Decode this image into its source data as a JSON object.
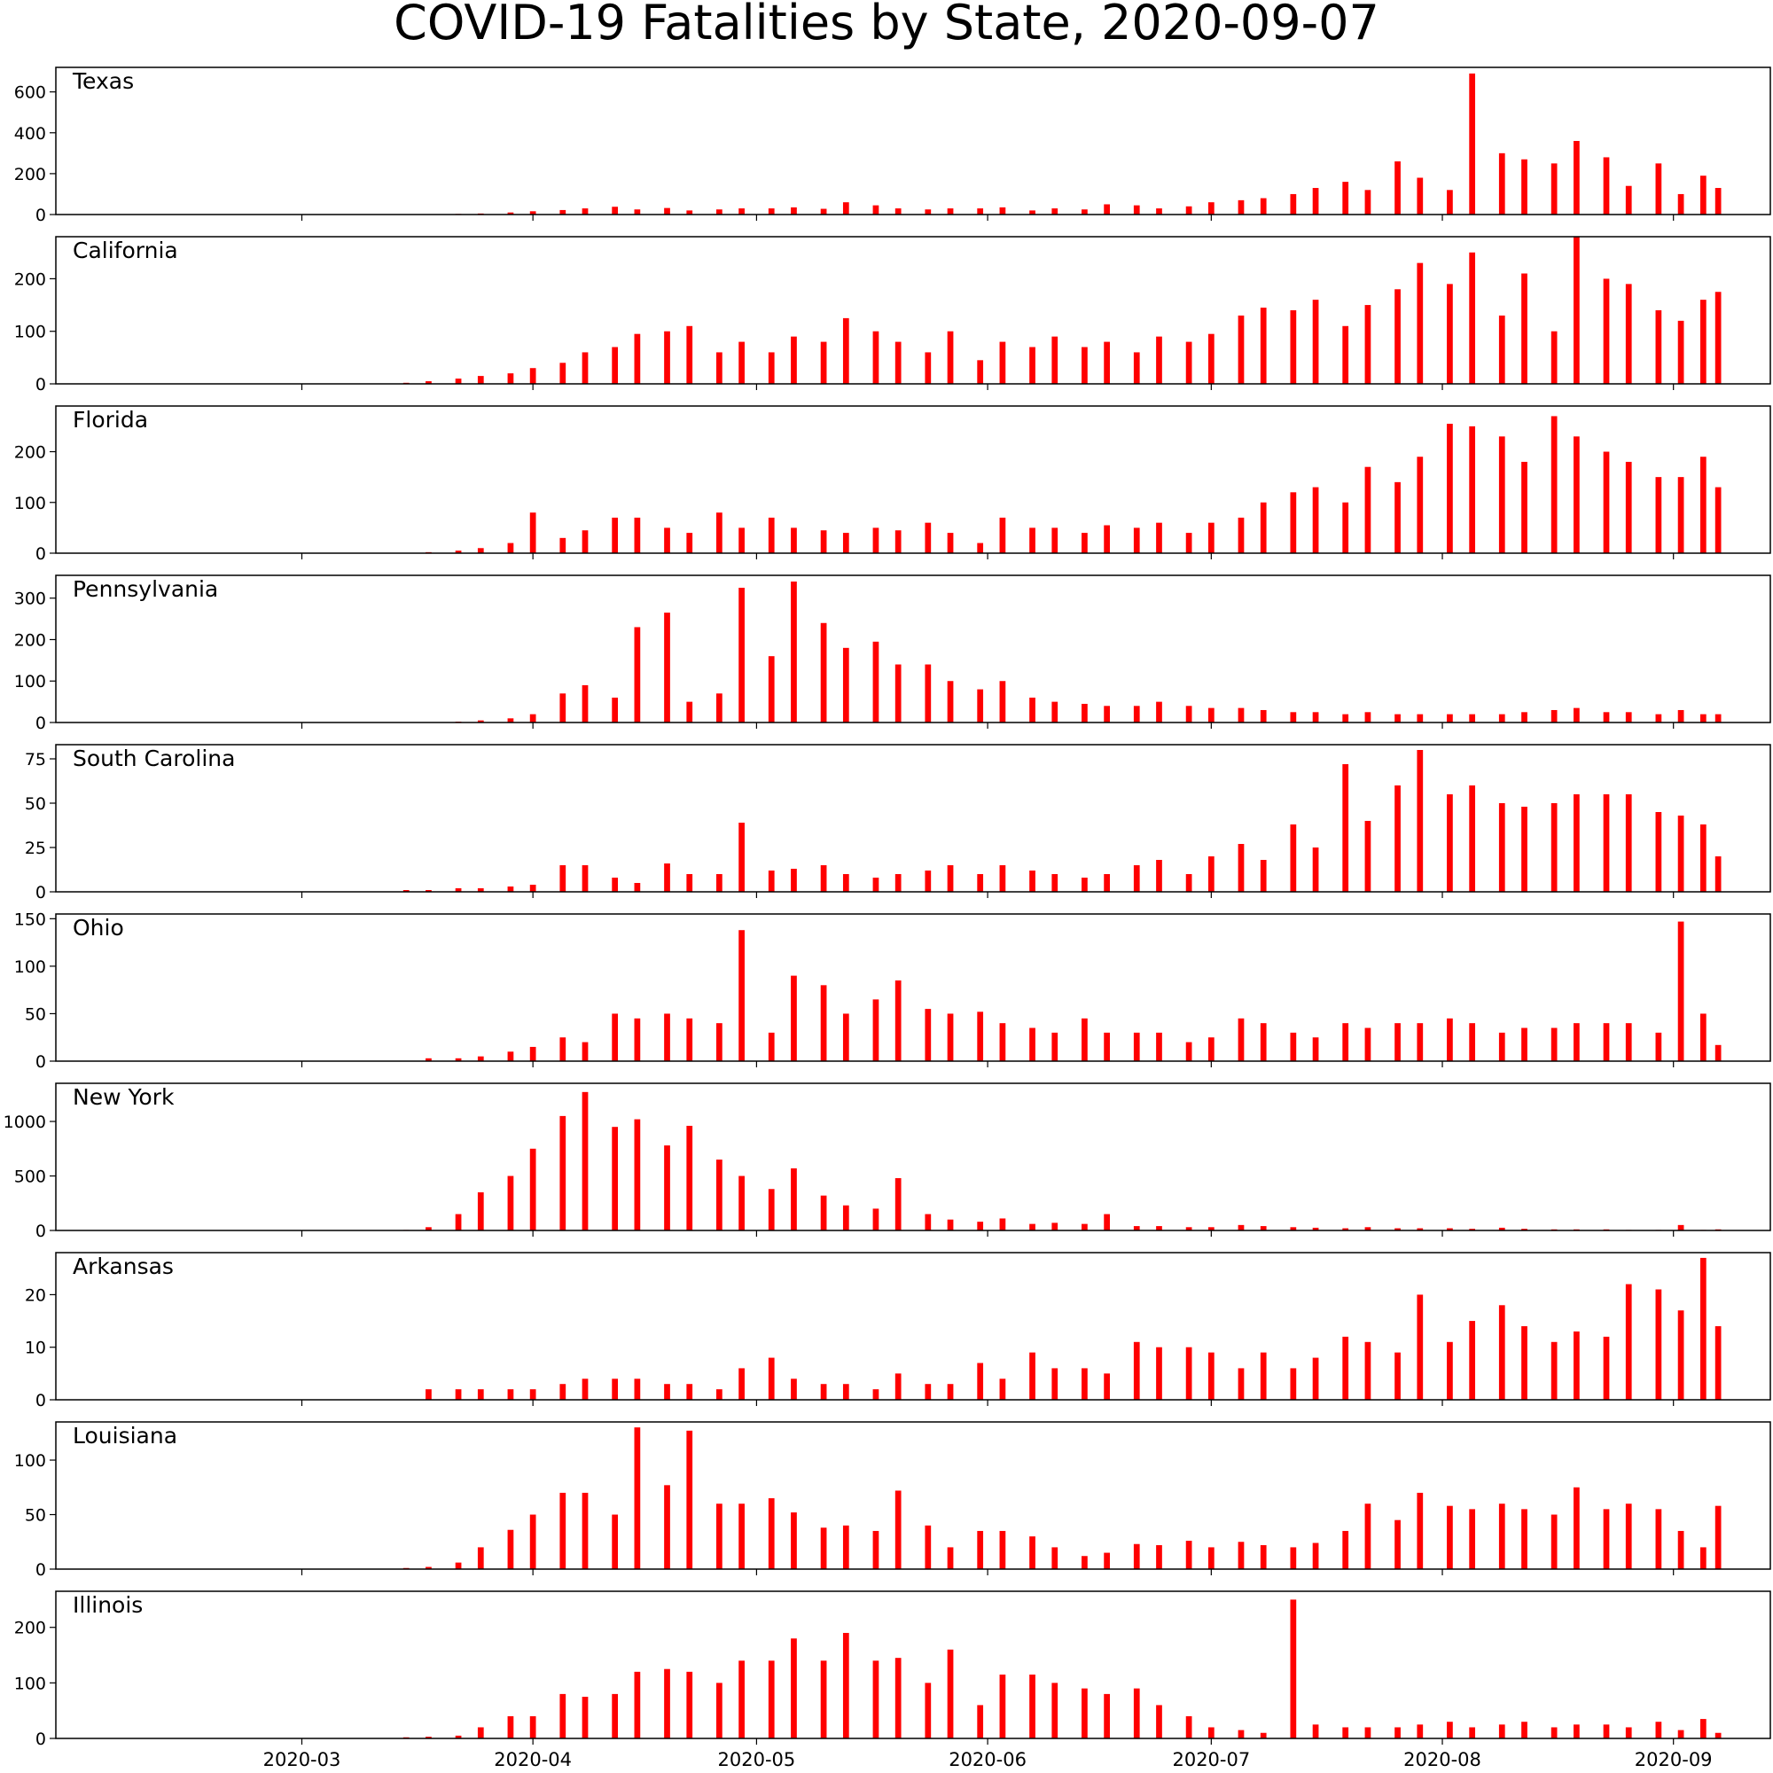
{
  "chart_data": {
    "type": "bar",
    "title": "COVID-19 Fatalities by State, 2020-09-07",
    "bar_color": "#ff0000",
    "x_ticks": [
      "2020-03",
      "2020-04",
      "2020-05",
      "2020-06",
      "2020-07",
      "2020-08",
      "2020-09"
    ],
    "tick_dates": [
      "2020-03-01",
      "2020-04-01",
      "2020-05-01",
      "2020-06-01",
      "2020-07-01",
      "2020-08-01",
      "2020-09-01"
    ],
    "x_range": [
      "2020-01-28",
      "2020-09-14"
    ],
    "grid": false,
    "legend": false,
    "dates": [
      "2020-03-01",
      "2020-03-08",
      "2020-03-15",
      "2020-03-18",
      "2020-03-22",
      "2020-03-25",
      "2020-03-29",
      "2020-04-01",
      "2020-04-05",
      "2020-04-08",
      "2020-04-12",
      "2020-04-15",
      "2020-04-19",
      "2020-04-22",
      "2020-04-26",
      "2020-04-29",
      "2020-05-03",
      "2020-05-06",
      "2020-05-10",
      "2020-05-13",
      "2020-05-17",
      "2020-05-20",
      "2020-05-24",
      "2020-05-27",
      "2020-05-31",
      "2020-06-03",
      "2020-06-07",
      "2020-06-10",
      "2020-06-14",
      "2020-06-17",
      "2020-06-21",
      "2020-06-24",
      "2020-06-28",
      "2020-07-01",
      "2020-07-05",
      "2020-07-08",
      "2020-07-12",
      "2020-07-15",
      "2020-07-19",
      "2020-07-22",
      "2020-07-26",
      "2020-07-29",
      "2020-08-02",
      "2020-08-05",
      "2020-08-09",
      "2020-08-12",
      "2020-08-16",
      "2020-08-19",
      "2020-08-23",
      "2020-08-26",
      "2020-08-30",
      "2020-09-02",
      "2020-09-05",
      "2020-09-07"
    ],
    "states": [
      {
        "name": "Texas",
        "yticks": [
          0,
          200,
          400,
          600
        ],
        "ylim": [
          0,
          720
        ],
        "values": [
          0,
          0,
          0,
          2,
          3,
          5,
          10,
          16,
          22,
          30,
          38,
          25,
          32,
          20,
          25,
          30,
          30,
          35,
          28,
          60,
          45,
          30,
          25,
          30,
          30,
          35,
          20,
          30,
          25,
          50,
          45,
          30,
          40,
          60,
          70,
          80,
          100,
          130,
          160,
          120,
          260,
          180,
          120,
          690,
          300,
          270,
          250,
          360,
          280,
          140,
          250,
          100,
          190,
          130
        ]
      },
      {
        "name": "California",
        "yticks": [
          0,
          100,
          200
        ],
        "ylim": [
          0,
          280
        ],
        "values": [
          0,
          0,
          2,
          5,
          10,
          15,
          20,
          30,
          40,
          60,
          70,
          95,
          100,
          110,
          60,
          80,
          60,
          90,
          80,
          125,
          100,
          80,
          60,
          100,
          45,
          80,
          70,
          90,
          70,
          80,
          60,
          90,
          80,
          95,
          130,
          145,
          140,
          160,
          110,
          150,
          180,
          230,
          190,
          250,
          130,
          210,
          100,
          280,
          200,
          190,
          140,
          120,
          160,
          175
        ]
      },
      {
        "name": "Florida",
        "yticks": [
          0,
          100,
          200
        ],
        "ylim": [
          0,
          290
        ],
        "values": [
          0,
          0,
          0,
          2,
          5,
          10,
          20,
          80,
          30,
          45,
          70,
          70,
          50,
          40,
          80,
          50,
          70,
          50,
          45,
          40,
          50,
          45,
          60,
          40,
          20,
          70,
          50,
          50,
          40,
          55,
          50,
          60,
          40,
          60,
          70,
          100,
          120,
          130,
          100,
          170,
          140,
          190,
          255,
          250,
          230,
          180,
          270,
          230,
          200,
          180,
          150,
          150,
          190,
          130
        ]
      },
      {
        "name": "Pennsylvania",
        "yticks": [
          0,
          100,
          200,
          300
        ],
        "ylim": [
          0,
          355
        ],
        "values": [
          0,
          0,
          0,
          0,
          2,
          5,
          10,
          20,
          70,
          90,
          60,
          230,
          265,
          50,
          70,
          325,
          160,
          340,
          240,
          180,
          195,
          140,
          140,
          100,
          80,
          100,
          60,
          50,
          45,
          40,
          40,
          50,
          40,
          35,
          35,
          30,
          25,
          25,
          20,
          25,
          20,
          20,
          20,
          20,
          20,
          25,
          30,
          35,
          25,
          25,
          20,
          30,
          20,
          20
        ]
      },
      {
        "name": "South Carolina",
        "yticks": [
          0,
          25,
          50,
          75
        ],
        "ylim": [
          0,
          83
        ],
        "values": [
          0,
          0,
          1,
          1,
          2,
          2,
          3,
          4,
          15,
          15,
          8,
          5,
          16,
          10,
          10,
          39,
          12,
          13,
          15,
          10,
          8,
          10,
          12,
          15,
          10,
          15,
          12,
          10,
          8,
          10,
          15,
          18,
          10,
          20,
          27,
          18,
          38,
          25,
          72,
          40,
          60,
          80,
          55,
          60,
          50,
          48,
          50,
          55,
          55,
          55,
          45,
          43,
          38,
          20
        ]
      },
      {
        "name": "Ohio",
        "yticks": [
          0,
          50,
          100,
          150
        ],
        "ylim": [
          0,
          155
        ],
        "values": [
          0,
          0,
          0,
          3,
          3,
          5,
          10,
          15,
          25,
          20,
          50,
          45,
          50,
          45,
          40,
          138,
          30,
          90,
          80,
          50,
          65,
          85,
          55,
          50,
          52,
          40,
          35,
          30,
          45,
          30,
          30,
          30,
          20,
          25,
          45,
          40,
          30,
          25,
          40,
          35,
          40,
          40,
          45,
          40,
          30,
          35,
          35,
          40,
          40,
          40,
          30,
          147,
          50,
          17
        ]
      },
      {
        "name": "New York",
        "yticks": [
          0,
          500,
          1000
        ],
        "ylim": [
          0,
          1350
        ],
        "values": [
          0,
          0,
          5,
          30,
          150,
          350,
          500,
          750,
          1050,
          1270,
          950,
          1020,
          780,
          960,
          650,
          500,
          380,
          570,
          320,
          230,
          200,
          480,
          150,
          100,
          80,
          110,
          60,
          70,
          60,
          150,
          40,
          40,
          30,
          30,
          50,
          40,
          30,
          25,
          20,
          30,
          20,
          20,
          20,
          15,
          25,
          15,
          10,
          10,
          10,
          5,
          5,
          50,
          5,
          10
        ]
      },
      {
        "name": "Arkansas",
        "yticks": [
          0,
          10,
          20
        ],
        "ylim": [
          0,
          28
        ],
        "values": [
          0,
          0,
          0,
          2,
          2,
          2,
          2,
          2,
          3,
          4,
          4,
          4,
          3,
          3,
          2,
          6,
          8,
          4,
          3,
          3,
          2,
          5,
          3,
          3,
          7,
          4,
          9,
          6,
          6,
          5,
          11,
          10,
          10,
          9,
          6,
          9,
          6,
          8,
          12,
          11,
          9,
          20,
          11,
          15,
          18,
          14,
          11,
          13,
          12,
          22,
          21,
          17,
          27,
          14
        ]
      },
      {
        "name": "Louisiana",
        "yticks": [
          0,
          50,
          100
        ],
        "ylim": [
          0,
          135
        ],
        "values": [
          0,
          0,
          1,
          2,
          6,
          20,
          36,
          50,
          70,
          70,
          50,
          130,
          77,
          127,
          60,
          60,
          65,
          52,
          38,
          40,
          35,
          72,
          40,
          20,
          35,
          35,
          30,
          20,
          12,
          15,
          23,
          22,
          26,
          20,
          25,
          22,
          20,
          24,
          35,
          60,
          45,
          70,
          58,
          55,
          60,
          55,
          50,
          75,
          55,
          60,
          55,
          35,
          20,
          58
        ]
      },
      {
        "name": "Illinois",
        "yticks": [
          0,
          100,
          200
        ],
        "ylim": [
          0,
          265
        ],
        "values": [
          0,
          0,
          2,
          3,
          5,
          20,
          40,
          40,
          80,
          75,
          80,
          120,
          125,
          120,
          100,
          140,
          140,
          180,
          140,
          190,
          140,
          145,
          100,
          160,
          60,
          115,
          115,
          100,
          90,
          80,
          90,
          60,
          40,
          20,
          15,
          10,
          250,
          25,
          20,
          20,
          20,
          25,
          30,
          20,
          25,
          30,
          20,
          25,
          25,
          20,
          30,
          15,
          35,
          10
        ]
      }
    ]
  }
}
